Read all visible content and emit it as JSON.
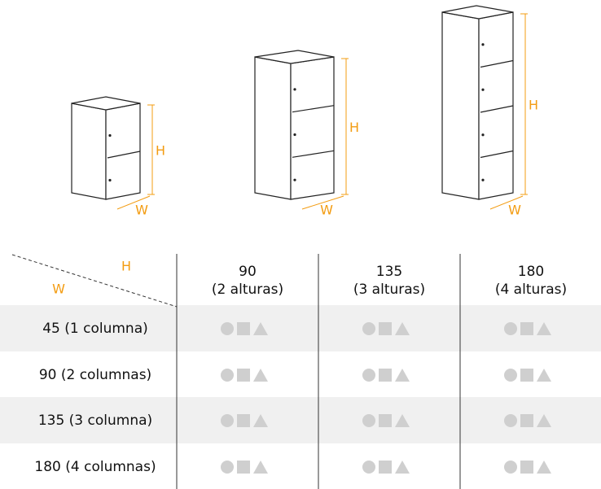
{
  "cabinets": [
    {
      "height_label": "H",
      "width_label": "W"
    },
    {
      "height_label": "H",
      "width_label": "W"
    },
    {
      "height_label": "H",
      "width_label": "W"
    }
  ],
  "table": {
    "corner": {
      "height_label": "H",
      "width_label": "W"
    },
    "columns": [
      {
        "height": "90",
        "levels": "(2 alturas)"
      },
      {
        "height": "135",
        "levels": "(3 alturas)"
      },
      {
        "height": "180",
        "levels": "(4 alturas)"
      }
    ],
    "rows": [
      "45 (1 columna)",
      "90 (2 columnas)",
      "135 (3 columna)",
      "180 (4 columnas)"
    ]
  }
}
